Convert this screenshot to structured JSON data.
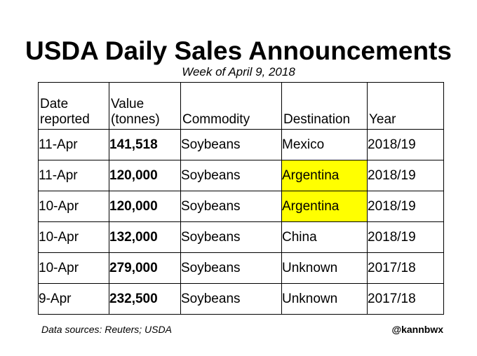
{
  "title": "USDA Daily Sales Announcements",
  "subtitle": "Week of April 9, 2018",
  "columns": [
    "Date reported",
    "Value (tonnes)",
    "Commodity",
    "Destination",
    "Year"
  ],
  "rows": [
    {
      "date": "11-Apr",
      "value": "141,518",
      "commodity": "Soybeans",
      "destination": "Mexico",
      "year": "2018/19",
      "highlight": false
    },
    {
      "date": "11-Apr",
      "value": "120,000",
      "commodity": "Soybeans",
      "destination": "Argentina",
      "year": "2018/19",
      "highlight": true
    },
    {
      "date": "10-Apr",
      "value": "120,000",
      "commodity": "Soybeans",
      "destination": "Argentina",
      "year": "2018/19",
      "highlight": true
    },
    {
      "date": "10-Apr",
      "value": "132,000",
      "commodity": "Soybeans",
      "destination": "China",
      "year": "2018/19",
      "highlight": false
    },
    {
      "date": "10-Apr",
      "value": "279,000",
      "commodity": "Soybeans",
      "destination": "Unknown",
      "year": "2017/18",
      "highlight": false
    },
    {
      "date": "9-Apr",
      "value": "232,500",
      "commodity": "Soybeans",
      "destination": "Unknown",
      "year": "2017/18",
      "highlight": false
    }
  ],
  "highlight_color": "#ffff00",
  "footer": {
    "source": "Data sources: Reuters; USDA",
    "handle": "@kannbwx"
  }
}
